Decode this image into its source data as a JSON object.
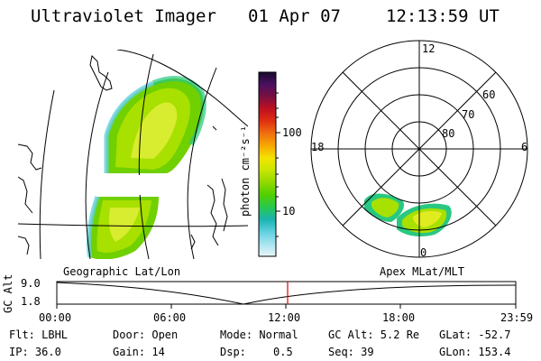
{
  "header": {
    "instrument": "Ultraviolet Imager",
    "date": "01 Apr 07",
    "time": "12:13:59 UT"
  },
  "colorbar": {
    "unit_label": "photon cm⁻²s⁻¹",
    "tick_labels": [
      "100",
      "10"
    ],
    "colors": [
      "#1a0a2e",
      "#4a1060",
      "#7a1040",
      "#c01020",
      "#e03010",
      "#f07010",
      "#f7a800",
      "#f4e400",
      "#c8e600",
      "#90d800",
      "#50d000",
      "#28c850",
      "#1ab4b0",
      "#60d0e0",
      "#a8e4f0",
      "#e8f4f8"
    ]
  },
  "polar_plot": {
    "mlt_labels": [
      "12",
      "18",
      "6",
      "0"
    ],
    "mlat_labels": [
      "60",
      "70",
      "80"
    ]
  },
  "timeline": {
    "left_title": "Geographic Lat/Lon",
    "right_title": "Apex MLat/MLT",
    "axis_label": "GC Alt",
    "y_labels": [
      "9.0",
      "1.8"
    ],
    "x_labels": [
      "00:00",
      "06:00",
      "12:00",
      "18:00",
      "23:59"
    ],
    "current_marker_color": "#e00000"
  },
  "status": {
    "filter": "Flt: LBHL",
    "door": "Door: Open",
    "mode": "Mode: Normal",
    "gc_alt": "GC Alt: 5.2 Re",
    "glat": "GLat: -52.7",
    "ip": "IP: 36.0",
    "gain": "Gain: 14",
    "dsp_label": "Dsp:",
    "dsp_value": "0.5",
    "seq": "Seq: 39",
    "glon": "GLon: 153.4"
  }
}
